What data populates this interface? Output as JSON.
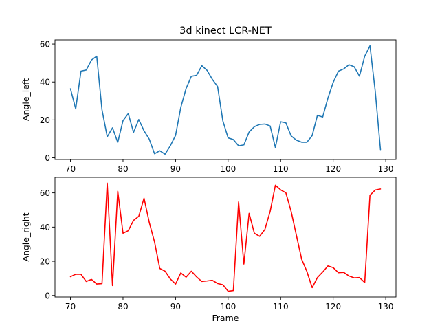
{
  "chart_data": [
    {
      "type": "line",
      "title": "3d kinect LCR-NET",
      "xlabel": "Frame",
      "ylabel": "Angle_left",
      "xlim": [
        67.05,
        131.95
      ],
      "ylim": [
        -0.9,
        62.2
      ],
      "xticks": [
        70,
        80,
        90,
        100,
        110,
        120,
        130
      ],
      "yticks": [
        0,
        20,
        40,
        60
      ],
      "color": "#1f77b4",
      "series": [
        {
          "x": [
            70,
            71,
            72,
            73,
            74,
            75,
            76,
            77,
            78,
            79,
            80,
            81,
            82,
            83,
            84,
            85,
            86,
            87,
            88,
            89,
            90,
            91,
            92,
            93,
            94,
            95,
            96,
            97,
            98,
            99,
            100,
            101,
            102,
            103,
            104,
            105,
            106,
            107,
            108,
            109,
            110,
            111,
            112,
            113,
            114,
            115,
            116,
            117,
            118,
            119,
            120,
            121,
            122,
            123,
            124,
            125,
            126,
            127,
            128,
            129
          ],
          "values": [
            36.4,
            25.8,
            45.7,
            46.3,
            51.6,
            53.6,
            25.3,
            11.1,
            15.8,
            8.1,
            19.6,
            23.3,
            13.4,
            20.2,
            14.2,
            9.8,
            2.1,
            3.7,
            1.9,
            6.3,
            11.8,
            26.6,
            36.5,
            43.0,
            43.5,
            48.6,
            46.1,
            41.4,
            37.6,
            19.5,
            10.5,
            9.6,
            6.3,
            6.8,
            13.6,
            16.4,
            17.6,
            17.8,
            16.8,
            5.4,
            19.0,
            18.4,
            11.5,
            9.3,
            8.2,
            8.2,
            11.7,
            22.4,
            21.5,
            31.5,
            39.8,
            45.7,
            46.9,
            49.1,
            48.0,
            43.1,
            53.6,
            59.1,
            35.2,
            4.3
          ]
        }
      ]
    },
    {
      "type": "line",
      "xlabel": "Frame",
      "ylabel": "Angle_right",
      "xlim": [
        67.05,
        131.95
      ],
      "ylim": [
        -0.9,
        69.1
      ],
      "xticks": [
        70,
        80,
        90,
        100,
        110,
        120,
        130
      ],
      "yticks": [
        0,
        20,
        40,
        60
      ],
      "color": "#ff0000",
      "series": [
        {
          "x": [
            70,
            71,
            72,
            73,
            74,
            75,
            76,
            77,
            78,
            79,
            80,
            81,
            82,
            83,
            84,
            85,
            86,
            87,
            88,
            89,
            90,
            91,
            92,
            93,
            94,
            95,
            96,
            97,
            98,
            99,
            100,
            101,
            102,
            103,
            104,
            105,
            106,
            107,
            108,
            109,
            110,
            111,
            112,
            113,
            114,
            115,
            116,
            117,
            118,
            119,
            120,
            121,
            122,
            123,
            124,
            125,
            126,
            127,
            128,
            129
          ],
          "values": [
            11.0,
            12.4,
            12.4,
            8.2,
            9.4,
            6.7,
            6.9,
            65.7,
            5.8,
            61.0,
            36.4,
            37.9,
            43.9,
            46.3,
            56.9,
            42.7,
            31.3,
            15.8,
            14.2,
            9.7,
            6.7,
            13.2,
            10.7,
            14.2,
            10.9,
            8.2,
            8.5,
            8.9,
            7.0,
            6.3,
            2.5,
            2.9,
            54.7,
            18.4,
            48.0,
            36.4,
            34.6,
            38.6,
            49.1,
            64.5,
            61.8,
            60.0,
            49.1,
            35.2,
            21.2,
            14.0,
            4.6,
            10.5,
            13.7,
            17.3,
            16.3,
            13.3,
            13.5,
            11.4,
            10.3,
            10.5,
            7.6,
            58.6,
            61.7,
            62.3
          ]
        }
      ]
    }
  ]
}
